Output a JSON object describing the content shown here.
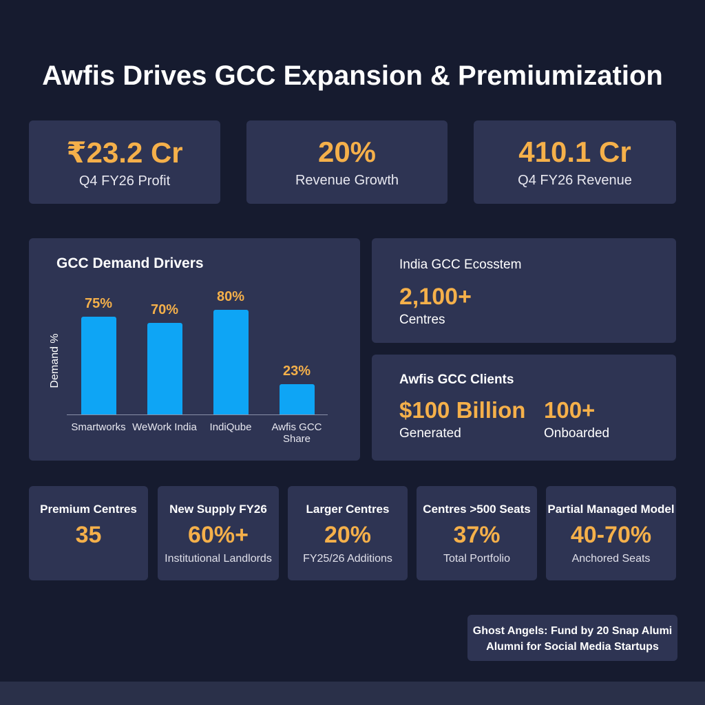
{
  "title": "Awfis Drives GCC Expansion & Premiumization",
  "kpis": [
    {
      "value": "₹23.2 Cr",
      "label": "Q4 FY26 Profit"
    },
    {
      "value": "20%",
      "label": "Revenue Growth"
    },
    {
      "value": "410.1 Cr",
      "label": "Q4 FY26 Revenue"
    }
  ],
  "chart_data": {
    "type": "bar",
    "title": "GCC Demand Drivers",
    "y_label": "Demand %",
    "categories": [
      "Smartworks",
      "WeWork India",
      "IndiQube",
      "Awfis GCC Share"
    ],
    "values": [
      75,
      70,
      80,
      23
    ],
    "value_labels": [
      "75%",
      "70%",
      "80%",
      "23%"
    ],
    "color": "#0ea5f5"
  },
  "ecosystem": {
    "title": "India GCC Ecosstem",
    "value": "2,100+",
    "label": "Centres"
  },
  "clients": {
    "title": "Awfis GCC Clients",
    "stats": [
      {
        "value": "$100 Billion",
        "label": "Generated"
      },
      {
        "value": "100+",
        "label": "Onboarded"
      }
    ]
  },
  "metrics": [
    {
      "title": "Premium Centres",
      "value": "35"
    },
    {
      "title": "New Supply FY26",
      "value": "60%+",
      "label": "Institutional Landlords"
    },
    {
      "title": "Larger Centres",
      "value": "20%",
      "label": "FY25/26 Additions"
    },
    {
      "title": "Centres >500 Seats",
      "value": "37%",
      "label": "Total Portfolio"
    },
    {
      "title": "Partial Managed Model",
      "value": "40-70%",
      "label": "Anchored Seats"
    }
  ],
  "note": {
    "lines": [
      "Ghost Angels: Fund by 20 Snap Alumi",
      "Alumni for Social Media Startups"
    ]
  }
}
